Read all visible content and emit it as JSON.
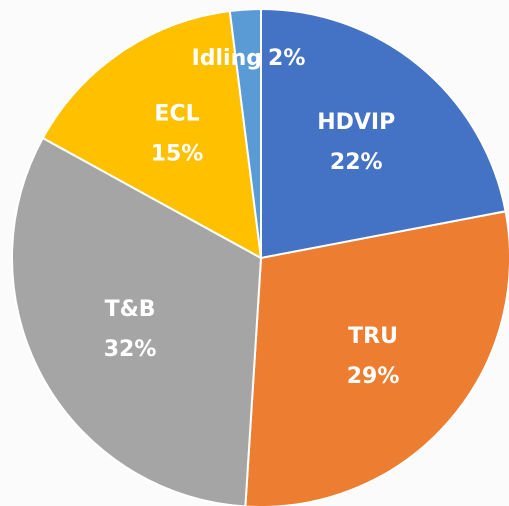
{
  "chart_data": {
    "type": "pie",
    "categories": [
      "HDVIP",
      "TRU",
      "T&B",
      "ECL",
      "Idling"
    ],
    "values": [
      22,
      29,
      32,
      15,
      2
    ],
    "value_labels": [
      "22%",
      "29%",
      "32%",
      "15%",
      "2%"
    ],
    "colors": [
      "#4472c4",
      "#ed7d31",
      "#a5a5a5",
      "#ffc000",
      "#5b9bd5"
    ]
  }
}
